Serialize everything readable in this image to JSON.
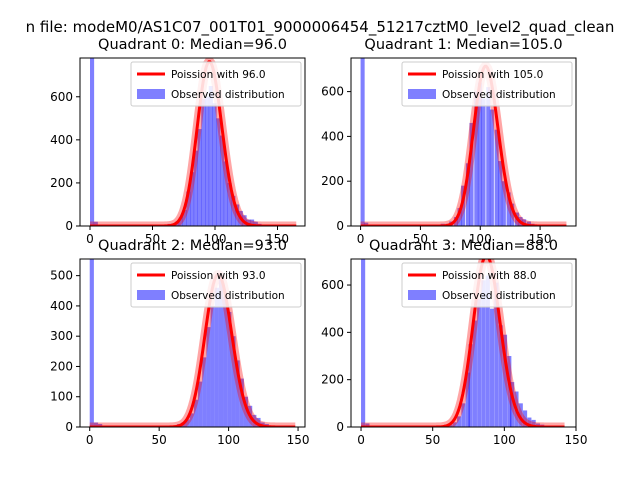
{
  "suptitle": "n file: modeM0/AS1C07_001T01_9000006454_51217cztM0_level2_quad_clean",
  "colors": {
    "poisson": "#ff0000",
    "observed": "#0000ff",
    "axis": "#000000"
  },
  "chart_data": [
    {
      "type": "histogram",
      "title": "Quadrant 0: Median=96.0",
      "xlim": [
        -8,
        172
      ],
      "ylim": [
        0,
        780
      ],
      "xticks": [
        0,
        50,
        100,
        150
      ],
      "yticks": [
        0,
        200,
        400,
        600
      ],
      "legend_position": "upper right",
      "series": [
        {
          "name": "Poission with 96.0",
          "kind": "line",
          "mean": 96.0,
          "x_range": [
            0,
            165
          ]
        },
        {
          "name": "Observed distribution",
          "kind": "bar",
          "bin_width": 3.3,
          "bins": [
            {
              "x": 0,
              "y": 780
            },
            {
              "x": 3,
              "y": 20
            },
            {
              "x": 59,
              "y": 5
            },
            {
              "x": 62,
              "y": 10
            },
            {
              "x": 65,
              "y": 10
            },
            {
              "x": 68,
              "y": 20
            },
            {
              "x": 71,
              "y": 40
            },
            {
              "x": 74,
              "y": 75
            },
            {
              "x": 77,
              "y": 160
            },
            {
              "x": 80,
              "y": 250
            },
            {
              "x": 83,
              "y": 350
            },
            {
              "x": 86,
              "y": 450
            },
            {
              "x": 89,
              "y": 590
            },
            {
              "x": 92,
              "y": 600
            },
            {
              "x": 95,
              "y": 650
            },
            {
              "x": 98,
              "y": 570
            },
            {
              "x": 101,
              "y": 500
            },
            {
              "x": 104,
              "y": 420
            },
            {
              "x": 107,
              "y": 300
            },
            {
              "x": 110,
              "y": 200
            },
            {
              "x": 113,
              "y": 140
            },
            {
              "x": 116,
              "y": 100
            },
            {
              "x": 119,
              "y": 70
            },
            {
              "x": 122,
              "y": 50
            },
            {
              "x": 125,
              "y": 30
            },
            {
              "x": 128,
              "y": 30
            },
            {
              "x": 131,
              "y": 20
            },
            {
              "x": 134,
              "y": 10
            },
            {
              "x": 137,
              "y": 5
            },
            {
              "x": 140,
              "y": 5
            }
          ]
        }
      ]
    },
    {
      "type": "histogram",
      "title": "Quadrant 1: Median=105.0",
      "xlim": [
        -8,
        180
      ],
      "ylim": [
        0,
        750
      ],
      "xticks": [
        0,
        50,
        100,
        150
      ],
      "yticks": [
        0,
        200,
        400,
        600
      ],
      "legend_position": "upper right",
      "series": [
        {
          "name": "Poission with 105.0",
          "kind": "line",
          "mean": 105.0,
          "x_range": [
            0,
            172
          ]
        },
        {
          "name": "Observed distribution",
          "kind": "bar",
          "bin_width": 3.4,
          "bins": [
            {
              "x": 0,
              "y": 750
            },
            {
              "x": 3,
              "y": 15
            },
            {
              "x": 64,
              "y": 5
            },
            {
              "x": 67,
              "y": 10
            },
            {
              "x": 71,
              "y": 10
            },
            {
              "x": 74,
              "y": 20
            },
            {
              "x": 78,
              "y": 40
            },
            {
              "x": 81,
              "y": 80
            },
            {
              "x": 84,
              "y": 180
            },
            {
              "x": 88,
              "y": 280
            },
            {
              "x": 91,
              "y": 460
            },
            {
              "x": 95,
              "y": 600
            },
            {
              "x": 98,
              "y": 640
            },
            {
              "x": 101,
              "y": 570
            },
            {
              "x": 105,
              "y": 620
            },
            {
              "x": 108,
              "y": 520
            },
            {
              "x": 112,
              "y": 430
            },
            {
              "x": 115,
              "y": 290
            },
            {
              "x": 118,
              "y": 200
            },
            {
              "x": 122,
              "y": 150
            },
            {
              "x": 125,
              "y": 100
            },
            {
              "x": 129,
              "y": 60
            },
            {
              "x": 132,
              "y": 40
            },
            {
              "x": 135,
              "y": 30
            },
            {
              "x": 139,
              "y": 20
            },
            {
              "x": 142,
              "y": 10
            },
            {
              "x": 146,
              "y": 5
            },
            {
              "x": 149,
              "y": 5
            }
          ]
        }
      ]
    },
    {
      "type": "histogram",
      "title": "Quadrant 2: Median=93.0",
      "xlim": [
        -7,
        155
      ],
      "ylim": [
        0,
        555
      ],
      "xticks": [
        0,
        50,
        100,
        150
      ],
      "yticks": [
        0,
        100,
        200,
        300,
        400,
        500
      ],
      "legend_position": "upper right",
      "series": [
        {
          "name": "Poission with 93.0",
          "kind": "line",
          "mean": 93.0,
          "x_range": [
            0,
            148
          ]
        },
        {
          "name": "Observed distribution",
          "kind": "bar",
          "bin_width": 3.0,
          "bins": [
            {
              "x": 0,
              "y": 555
            },
            {
              "x": 3,
              "y": 15
            },
            {
              "x": 6,
              "y": 10
            },
            {
              "x": 9,
              "y": 5
            },
            {
              "x": 45,
              "y": 5
            },
            {
              "x": 54,
              "y": 5
            },
            {
              "x": 60,
              "y": 5
            },
            {
              "x": 63,
              "y": 10
            },
            {
              "x": 66,
              "y": 15
            },
            {
              "x": 69,
              "y": 25
            },
            {
              "x": 72,
              "y": 45
            },
            {
              "x": 75,
              "y": 90
            },
            {
              "x": 78,
              "y": 150
            },
            {
              "x": 81,
              "y": 230
            },
            {
              "x": 84,
              "y": 330
            },
            {
              "x": 87,
              "y": 400
            },
            {
              "x": 90,
              "y": 460
            },
            {
              "x": 93,
              "y": 500
            },
            {
              "x": 96,
              "y": 430
            },
            {
              "x": 99,
              "y": 380
            },
            {
              "x": 102,
              "y": 300
            },
            {
              "x": 105,
              "y": 220
            },
            {
              "x": 108,
              "y": 160
            },
            {
              "x": 111,
              "y": 100
            },
            {
              "x": 114,
              "y": 70
            },
            {
              "x": 117,
              "y": 40
            },
            {
              "x": 120,
              "y": 30
            },
            {
              "x": 123,
              "y": 15
            },
            {
              "x": 126,
              "y": 10
            },
            {
              "x": 129,
              "y": 5
            }
          ]
        }
      ]
    },
    {
      "type": "histogram",
      "title": "Quadrant 3: Median=88.0",
      "xlim": [
        -7,
        150
      ],
      "ylim": [
        0,
        710
      ],
      "xticks": [
        0,
        50,
        100,
        150
      ],
      "yticks": [
        0,
        200,
        400,
        600
      ],
      "legend_position": "upper right",
      "series": [
        {
          "name": "Poission with 88.0",
          "kind": "line",
          "mean": 88.0,
          "x_range": [
            0,
            142
          ]
        },
        {
          "name": "Observed distribution",
          "kind": "bar",
          "bin_width": 2.9,
          "bins": [
            {
              "x": 0,
              "y": 710
            },
            {
              "x": 3,
              "y": 15
            },
            {
              "x": 52,
              "y": 5
            },
            {
              "x": 55,
              "y": 5
            },
            {
              "x": 58,
              "y": 10
            },
            {
              "x": 61,
              "y": 10
            },
            {
              "x": 64,
              "y": 20
            },
            {
              "x": 67,
              "y": 45
            },
            {
              "x": 70,
              "y": 100
            },
            {
              "x": 73,
              "y": 230
            },
            {
              "x": 75,
              "y": 350
            },
            {
              "x": 78,
              "y": 450
            },
            {
              "x": 81,
              "y": 540
            },
            {
              "x": 84,
              "y": 620
            },
            {
              "x": 87,
              "y": 640
            },
            {
              "x": 90,
              "y": 500
            },
            {
              "x": 93,
              "y": 610
            },
            {
              "x": 96,
              "y": 430
            },
            {
              "x": 99,
              "y": 390
            },
            {
              "x": 102,
              "y": 300
            },
            {
              "x": 104,
              "y": 190
            },
            {
              "x": 107,
              "y": 150
            },
            {
              "x": 110,
              "y": 100
            },
            {
              "x": 113,
              "y": 70
            },
            {
              "x": 116,
              "y": 40
            },
            {
              "x": 119,
              "y": 30
            },
            {
              "x": 122,
              "y": 15
            },
            {
              "x": 125,
              "y": 10
            },
            {
              "x": 128,
              "y": 5
            }
          ]
        }
      ]
    }
  ]
}
